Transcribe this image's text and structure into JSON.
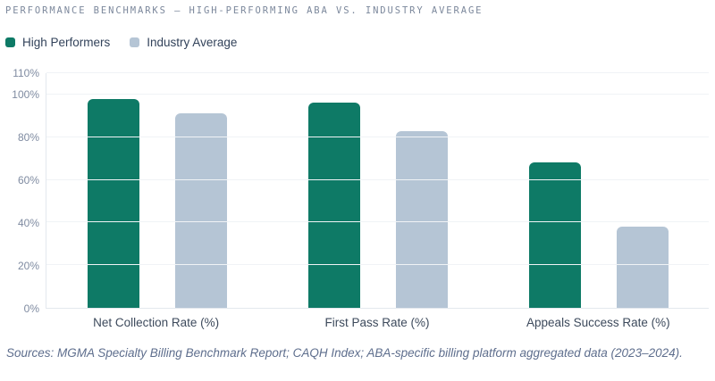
{
  "header": {
    "title": "PERFORMANCE BENCHMARKS — HIGH-PERFORMING ABA VS. INDUSTRY AVERAGE"
  },
  "chart_data": {
    "type": "bar",
    "title": "PERFORMANCE BENCHMARKS — HIGH-PERFORMING ABA VS. INDUSTRY AVERAGE",
    "categories": [
      "Net Collection Rate (%)",
      "First Pass Rate (%)",
      "Appeals Success Rate (%)"
    ],
    "series": [
      {
        "name": "High Performers",
        "color": "#0e7a66",
        "values": [
          98,
          96,
          68
        ]
      },
      {
        "name": "Industry Average",
        "color": "#b5c5d5",
        "values": [
          91,
          83,
          38
        ]
      }
    ],
    "xlabel": "",
    "ylabel": "",
    "ylim": [
      0,
      110
    ],
    "yticks": [
      0,
      20,
      40,
      60,
      80,
      100,
      110
    ],
    "ytick_suffix": "%",
    "grid": "horizontal",
    "legend_position": "top-left"
  },
  "footer": {
    "sources": "Sources: MGMA Specialty Billing Benchmark Report; CAQH Index; ABA-specific billing platform aggregated data (2023–2024)."
  },
  "colors": {
    "high_performers": "#0e7a66",
    "industry_average": "#b5c5d5",
    "title_text": "#7c889c",
    "axis_line": "#e3e8ee",
    "gridline": "#f0f3f6",
    "tick_text": "#7f8ba1",
    "category_text": "#3d4a5c",
    "legend_text": "#32425a",
    "footer_text": "#5e6e8d",
    "background": "#ffffff"
  }
}
